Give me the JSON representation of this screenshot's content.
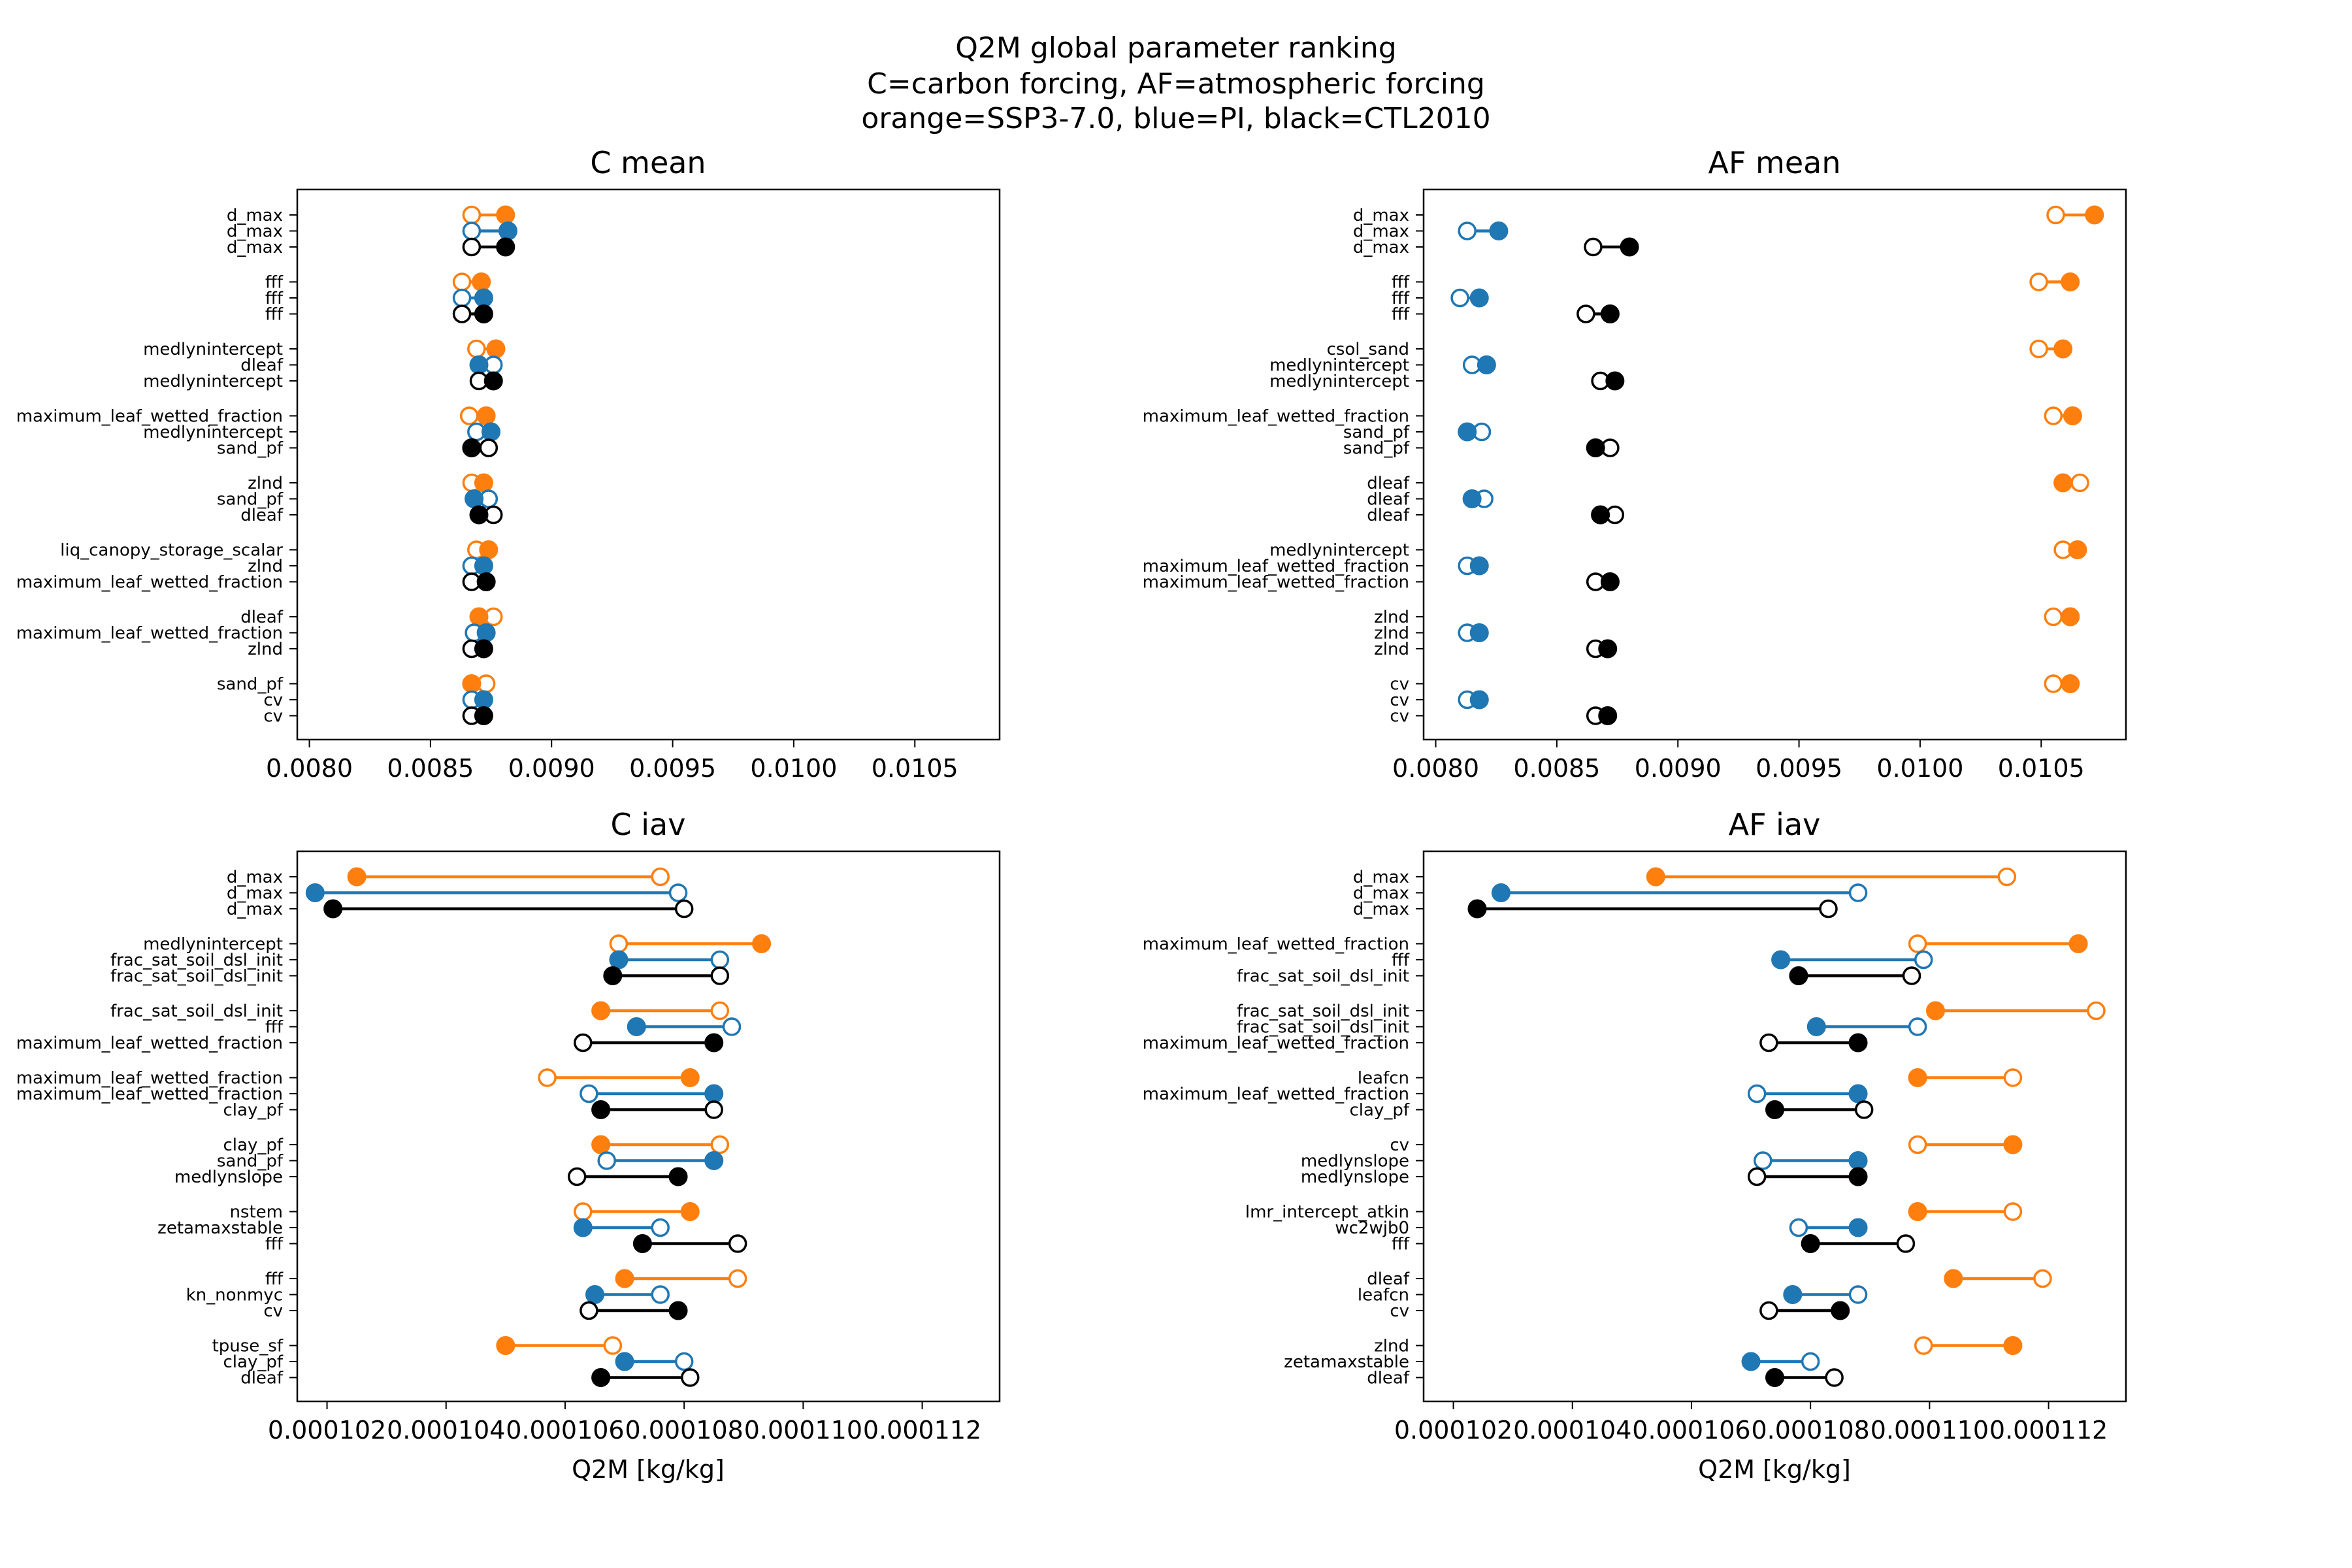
{
  "figure": {
    "title_lines": [
      "Q2M global parameter ranking",
      "C=carbon forcing, AF=atmospheric forcing",
      "orange=SSP3-7.0, blue=PI, black=CTL2010"
    ]
  },
  "colors": {
    "orange": "#ff7f0e",
    "blue": "#1f77b4",
    "black": "#000000"
  },
  "chart_data": [
    {
      "id": "c-mean",
      "type": "dumbbell",
      "title": "C mean",
      "xlabel": "",
      "xlim": [
        0.00795,
        0.01085
      ],
      "xticks": [
        0.008,
        0.0085,
        0.009,
        0.0095,
        0.01,
        0.0105
      ],
      "xtick_labels": [
        "0.0080",
        "0.0085",
        "0.0090",
        "0.0095",
        "0.0100",
        "0.0105"
      ],
      "groups": [
        {
          "rows": [
            {
              "label": "d_max",
              "color": "orange",
              "open": 0.00867,
              "filled": 0.00881
            },
            {
              "label": "d_max",
              "color": "blue",
              "open": 0.00867,
              "filled": 0.00882
            },
            {
              "label": "d_max",
              "color": "black",
              "open": 0.00867,
              "filled": 0.00881
            }
          ]
        },
        {
          "rows": [
            {
              "label": "fff",
              "color": "orange",
              "open": 0.00863,
              "filled": 0.00871
            },
            {
              "label": "fff",
              "color": "blue",
              "open": 0.00863,
              "filled": 0.00872
            },
            {
              "label": "fff",
              "color": "black",
              "open": 0.00863,
              "filled": 0.00872
            }
          ]
        },
        {
          "rows": [
            {
              "label": "medlynintercept",
              "color": "orange",
              "open": 0.00869,
              "filled": 0.00877
            },
            {
              "label": "dleaf",
              "color": "blue",
              "open": 0.00876,
              "filled": 0.0087
            },
            {
              "label": "medlynintercept",
              "color": "black",
              "open": 0.0087,
              "filled": 0.00876
            }
          ]
        },
        {
          "rows": [
            {
              "label": "maximum_leaf_wetted_fraction",
              "color": "orange",
              "open": 0.00866,
              "filled": 0.00873
            },
            {
              "label": "medlynintercept",
              "color": "blue",
              "open": 0.00869,
              "filled": 0.00875
            },
            {
              "label": "sand_pf",
              "color": "black",
              "open": 0.00874,
              "filled": 0.00867
            }
          ]
        },
        {
          "rows": [
            {
              "label": "zlnd",
              "color": "orange",
              "open": 0.00867,
              "filled": 0.00872
            },
            {
              "label": "sand_pf",
              "color": "blue",
              "open": 0.00874,
              "filled": 0.00868
            },
            {
              "label": "dleaf",
              "color": "black",
              "open": 0.00876,
              "filled": 0.0087
            }
          ]
        },
        {
          "rows": [
            {
              "label": "liq_canopy_storage_scalar",
              "color": "orange",
              "open": 0.00869,
              "filled": 0.00874
            },
            {
              "label": "zlnd",
              "color": "blue",
              "open": 0.00867,
              "filled": 0.00872
            },
            {
              "label": "maximum_leaf_wetted_fraction",
              "color": "black",
              "open": 0.00867,
              "filled": 0.00873
            }
          ]
        },
        {
          "rows": [
            {
              "label": "dleaf",
              "color": "orange",
              "open": 0.00876,
              "filled": 0.0087
            },
            {
              "label": "maximum_leaf_wetted_fraction",
              "color": "blue",
              "open": 0.00868,
              "filled": 0.00873
            },
            {
              "label": "zlnd",
              "color": "black",
              "open": 0.00867,
              "filled": 0.00872
            }
          ]
        },
        {
          "rows": [
            {
              "label": "sand_pf",
              "color": "orange",
              "open": 0.00873,
              "filled": 0.00867
            },
            {
              "label": "cv",
              "color": "blue",
              "open": 0.00867,
              "filled": 0.00872
            },
            {
              "label": "cv",
              "color": "black",
              "open": 0.00867,
              "filled": 0.00872
            }
          ]
        }
      ]
    },
    {
      "id": "af-mean",
      "type": "dumbbell",
      "title": "AF mean",
      "xlabel": "",
      "xlim": [
        0.00795,
        0.01085
      ],
      "xticks": [
        0.008,
        0.0085,
        0.009,
        0.0095,
        0.01,
        0.0105
      ],
      "xtick_labels": [
        "0.0080",
        "0.0085",
        "0.0090",
        "0.0095",
        "0.0100",
        "0.0105"
      ],
      "groups": [
        {
          "rows": [
            {
              "label": "d_max",
              "color": "orange",
              "open": 0.01056,
              "filled": 0.01072
            },
            {
              "label": "d_max",
              "color": "blue",
              "open": 0.00813,
              "filled": 0.00826
            },
            {
              "label": "d_max",
              "color": "black",
              "open": 0.00865,
              "filled": 0.0088
            }
          ]
        },
        {
          "rows": [
            {
              "label": "fff",
              "color": "orange",
              "open": 0.01049,
              "filled": 0.01062
            },
            {
              "label": "fff",
              "color": "blue",
              "open": 0.0081,
              "filled": 0.00818
            },
            {
              "label": "fff",
              "color": "black",
              "open": 0.00862,
              "filled": 0.00872
            }
          ]
        },
        {
          "rows": [
            {
              "label": "csol_sand",
              "color": "orange",
              "open": 0.01049,
              "filled": 0.01059
            },
            {
              "label": "medlynintercept",
              "color": "blue",
              "open": 0.00815,
              "filled": 0.00821
            },
            {
              "label": "medlynintercept",
              "color": "black",
              "open": 0.00868,
              "filled": 0.00874
            }
          ]
        },
        {
          "rows": [
            {
              "label": "maximum_leaf_wetted_fraction",
              "color": "orange",
              "open": 0.01055,
              "filled": 0.01063
            },
            {
              "label": "sand_pf",
              "color": "blue",
              "open": 0.00819,
              "filled": 0.00813
            },
            {
              "label": "sand_pf",
              "color": "black",
              "open": 0.00872,
              "filled": 0.00866
            }
          ]
        },
        {
          "rows": [
            {
              "label": "dleaf",
              "color": "orange",
              "open": 0.01066,
              "filled": 0.01059
            },
            {
              "label": "dleaf",
              "color": "blue",
              "open": 0.0082,
              "filled": 0.00815
            },
            {
              "label": "dleaf",
              "color": "black",
              "open": 0.00874,
              "filled": 0.00868
            }
          ]
        },
        {
          "rows": [
            {
              "label": "medlynintercept",
              "color": "orange",
              "open": 0.01059,
              "filled": 0.01065
            },
            {
              "label": "maximum_leaf_wetted_fraction",
              "color": "blue",
              "open": 0.00813,
              "filled": 0.00818
            },
            {
              "label": "maximum_leaf_wetted_fraction",
              "color": "black",
              "open": 0.00866,
              "filled": 0.00872
            }
          ]
        },
        {
          "rows": [
            {
              "label": "zlnd",
              "color": "orange",
              "open": 0.01055,
              "filled": 0.01062
            },
            {
              "label": "zlnd",
              "color": "blue",
              "open": 0.00813,
              "filled": 0.00818
            },
            {
              "label": "zlnd",
              "color": "black",
              "open": 0.00866,
              "filled": 0.00871
            }
          ]
        },
        {
          "rows": [
            {
              "label": "cv",
              "color": "orange",
              "open": 0.01055,
              "filled": 0.01062
            },
            {
              "label": "cv",
              "color": "blue",
              "open": 0.00813,
              "filled": 0.00818
            },
            {
              "label": "cv",
              "color": "black",
              "open": 0.00866,
              "filled": 0.00871
            }
          ]
        }
      ]
    },
    {
      "id": "c-iav",
      "type": "dumbbell",
      "title": "C iav",
      "xlabel": "Q2M [kg/kg]",
      "xlim": [
        0.0001015,
        0.0001133
      ],
      "xticks": [
        0.000102,
        0.000104,
        0.000106,
        0.000108,
        0.00011,
        0.000112
      ],
      "xtick_labels": [
        "0.000102",
        "0.000104",
        "0.000106",
        "0.000108",
        "0.000110",
        "0.000112"
      ],
      "groups": [
        {
          "rows": [
            {
              "label": "d_max",
              "color": "orange",
              "open": 0.0001076,
              "filled": 0.0001025
            },
            {
              "label": "d_max",
              "color": "blue",
              "open": 0.0001079,
              "filled": 0.0001018
            },
            {
              "label": "d_max",
              "color": "black",
              "open": 0.000108,
              "filled": 0.0001021
            }
          ]
        },
        {
          "rows": [
            {
              "label": "medlynintercept",
              "color": "orange",
              "open": 0.0001069,
              "filled": 0.0001093
            },
            {
              "label": "frac_sat_soil_dsl_init",
              "color": "blue",
              "open": 0.0001086,
              "filled": 0.0001069
            },
            {
              "label": "frac_sat_soil_dsl_init",
              "color": "black",
              "open": 0.0001086,
              "filled": 0.0001068
            }
          ]
        },
        {
          "rows": [
            {
              "label": "frac_sat_soil_dsl_init",
              "color": "orange",
              "open": 0.0001086,
              "filled": 0.0001066
            },
            {
              "label": "fff",
              "color": "blue",
              "open": 0.0001088,
              "filled": 0.0001072
            },
            {
              "label": "maximum_leaf_wetted_fraction",
              "color": "black",
              "open": 0.0001063,
              "filled": 0.0001085
            }
          ]
        },
        {
          "rows": [
            {
              "label": "maximum_leaf_wetted_fraction",
              "color": "orange",
              "open": 0.0001057,
              "filled": 0.0001081
            },
            {
              "label": "maximum_leaf_wetted_fraction",
              "color": "blue",
              "open": 0.0001064,
              "filled": 0.0001085
            },
            {
              "label": "clay_pf",
              "color": "black",
              "open": 0.0001085,
              "filled": 0.0001066
            }
          ]
        },
        {
          "rows": [
            {
              "label": "clay_pf",
              "color": "orange",
              "open": 0.0001086,
              "filled": 0.0001066
            },
            {
              "label": "sand_pf",
              "color": "blue",
              "open": 0.0001067,
              "filled": 0.0001085
            },
            {
              "label": "medlynslope",
              "color": "black",
              "open": 0.0001062,
              "filled": 0.0001079
            }
          ]
        },
        {
          "rows": [
            {
              "label": "nstem",
              "color": "orange",
              "open": 0.0001063,
              "filled": 0.0001081
            },
            {
              "label": "zetamaxstable",
              "color": "blue",
              "open": 0.0001076,
              "filled": 0.0001063
            },
            {
              "label": "fff",
              "color": "black",
              "open": 0.0001089,
              "filled": 0.0001073
            }
          ]
        },
        {
          "rows": [
            {
              "label": "fff",
              "color": "orange",
              "open": 0.0001089,
              "filled": 0.000107
            },
            {
              "label": "kn_nonmyc",
              "color": "blue",
              "open": 0.0001076,
              "filled": 0.0001065
            },
            {
              "label": "cv",
              "color": "black",
              "open": 0.0001064,
              "filled": 0.0001079
            }
          ]
        },
        {
          "rows": [
            {
              "label": "tpuse_sf",
              "color": "orange",
              "open": 0.0001068,
              "filled": 0.000105
            },
            {
              "label": "clay_pf",
              "color": "blue",
              "open": 0.000108,
              "filled": 0.000107
            },
            {
              "label": "dleaf",
              "color": "black",
              "open": 0.0001081,
              "filled": 0.0001066
            }
          ]
        }
      ]
    },
    {
      "id": "af-iav",
      "type": "dumbbell",
      "title": "AF iav",
      "xlabel": "Q2M [kg/kg]",
      "xlim": [
        0.0001015,
        0.0001133
      ],
      "xticks": [
        0.000102,
        0.000104,
        0.000106,
        0.000108,
        0.00011,
        0.000112
      ],
      "xtick_labels": [
        "0.000102",
        "0.000104",
        "0.000106",
        "0.000108",
        "0.000110",
        "0.000112"
      ],
      "groups": [
        {
          "rows": [
            {
              "label": "d_max",
              "color": "orange",
              "open": 0.0001113,
              "filled": 0.0001054
            },
            {
              "label": "d_max",
              "color": "blue",
              "open": 0.0001088,
              "filled": 0.0001028
            },
            {
              "label": "d_max",
              "color": "black",
              "open": 0.0001083,
              "filled": 0.0001024
            }
          ]
        },
        {
          "rows": [
            {
              "label": "maximum_leaf_wetted_fraction",
              "color": "orange",
              "open": 0.0001098,
              "filled": 0.0001125
            },
            {
              "label": "fff",
              "color": "blue",
              "open": 0.0001099,
              "filled": 0.0001075
            },
            {
              "label": "frac_sat_soil_dsl_init",
              "color": "black",
              "open": 0.0001097,
              "filled": 0.0001078
            }
          ]
        },
        {
          "rows": [
            {
              "label": "frac_sat_soil_dsl_init",
              "color": "orange",
              "open": 0.0001128,
              "filled": 0.0001101
            },
            {
              "label": "frac_sat_soil_dsl_init",
              "color": "blue",
              "open": 0.0001098,
              "filled": 0.0001081
            },
            {
              "label": "maximum_leaf_wetted_fraction",
              "color": "black",
              "open": 0.0001073,
              "filled": 0.0001088
            }
          ]
        },
        {
          "rows": [
            {
              "label": "leafcn",
              "color": "orange",
              "open": 0.0001114,
              "filled": 0.0001098
            },
            {
              "label": "maximum_leaf_wetted_fraction",
              "color": "blue",
              "open": 0.0001071,
              "filled": 0.0001088
            },
            {
              "label": "clay_pf",
              "color": "black",
              "open": 0.0001089,
              "filled": 0.0001074
            }
          ]
        },
        {
          "rows": [
            {
              "label": "cv",
              "color": "orange",
              "open": 0.0001098,
              "filled": 0.0001114
            },
            {
              "label": "medlynslope",
              "color": "blue",
              "open": 0.0001072,
              "filled": 0.0001088
            },
            {
              "label": "medlynslope",
              "color": "black",
              "open": 0.0001071,
              "filled": 0.0001088
            }
          ]
        },
        {
          "rows": [
            {
              "label": "lmr_intercept_atkin",
              "color": "orange",
              "open": 0.0001114,
              "filled": 0.0001098
            },
            {
              "label": "wc2wjb0",
              "color": "blue",
              "open": 0.0001078,
              "filled": 0.0001088
            },
            {
              "label": "fff",
              "color": "black",
              "open": 0.0001096,
              "filled": 0.000108
            }
          ]
        },
        {
          "rows": [
            {
              "label": "dleaf",
              "color": "orange",
              "open": 0.0001119,
              "filled": 0.0001104
            },
            {
              "label": "leafcn",
              "color": "blue",
              "open": 0.0001088,
              "filled": 0.0001077
            },
            {
              "label": "cv",
              "color": "black",
              "open": 0.0001073,
              "filled": 0.0001085
            }
          ]
        },
        {
          "rows": [
            {
              "label": "zlnd",
              "color": "orange",
              "open": 0.0001099,
              "filled": 0.0001114
            },
            {
              "label": "zetamaxstable",
              "color": "blue",
              "open": 0.000108,
              "filled": 0.000107
            },
            {
              "label": "dleaf",
              "color": "black",
              "open": 0.0001084,
              "filled": 0.0001074
            }
          ]
        }
      ]
    }
  ]
}
